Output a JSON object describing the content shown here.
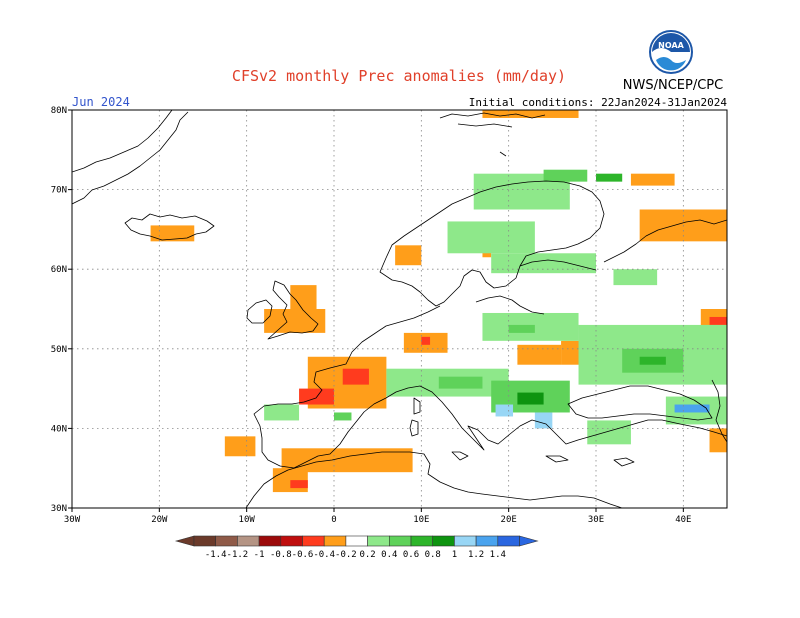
{
  "header": {
    "title": "CFSv2 monthly Prec anomalies (mm/day)",
    "month": "Jun 2024",
    "initial_conditions": "Initial conditions: 22Jan2024-31Jan2024",
    "agency": "NWS/NCEP/CPC",
    "logo_text": "NOAA"
  },
  "chart_data": {
    "type": "heatmap",
    "title": "CFSv2 monthly Prec anomalies (mm/day)",
    "subtitle": "Jun 2024",
    "xlabel": "",
    "ylabel": "",
    "xlim": [
      -30,
      45
    ],
    "ylim": [
      30,
      80
    ],
    "x_ticks": [
      -30,
      -20,
      -10,
      0,
      10,
      20,
      30,
      40
    ],
    "x_tick_labels": [
      "30W",
      "20W",
      "10W",
      "0",
      "10E",
      "20E",
      "30E",
      "40E"
    ],
    "y_ticks": [
      30,
      40,
      50,
      60,
      70,
      80
    ],
    "y_tick_labels": [
      "30N",
      "40N",
      "50N",
      "60N",
      "70N",
      "80N"
    ],
    "grid": true,
    "colorbar": {
      "levels": [
        -1.4,
        -1.2,
        -1,
        -0.8,
        -0.6,
        -0.4,
        -0.2,
        0.2,
        0.4,
        0.6,
        0.8,
        1,
        1.2,
        1.4
      ],
      "labels": [
        "-1.4",
        "-1.2",
        "-1",
        "-0.8",
        "-0.6",
        "-0.4",
        "-0.2",
        "0.2",
        "0.4",
        "0.6",
        "0.8",
        "1",
        "1.2",
        "1.4"
      ],
      "colors": [
        "#6b3a2a",
        "#8f5a48",
        "#b49484",
        "#9c0a0a",
        "#bf0e0e",
        "#ff3b1e",
        "#ff9e1a",
        "#ffffff",
        "#8ee88a",
        "#5fd25a",
        "#2db52a",
        "#0e9410",
        "#98d6f5",
        "#4aa3ee",
        "#2a66e0"
      ]
    },
    "anomaly_regions": [
      {
        "lon": [
          -12.5,
          -9
        ],
        "lat": [
          36.5,
          39
        ],
        "value": -0.3
      },
      {
        "lon": [
          -21,
          -16
        ],
        "lat": [
          63.5,
          65.5
        ],
        "value": -0.3
      },
      {
        "lon": [
          -8,
          -1
        ],
        "lat": [
          52,
          55
        ],
        "value": -0.3
      },
      {
        "lon": [
          -5,
          -2
        ],
        "lat": [
          55,
          58
        ],
        "value": -0.3
      },
      {
        "lon": [
          -3,
          6
        ],
        "lat": [
          42.5,
          49
        ],
        "value": -0.3
      },
      {
        "lon": [
          1,
          4
        ],
        "lat": [
          45.5,
          47.5
        ],
        "value": -0.5
      },
      {
        "lon": [
          -4,
          0
        ],
        "lat": [
          43,
          45
        ],
        "value": -0.5
      },
      {
        "lon": [
          -6,
          9
        ],
        "lat": [
          34.5,
          37.5
        ],
        "value": -0.3
      },
      {
        "lon": [
          -7,
          -3
        ],
        "lat": [
          32,
          35
        ],
        "value": -0.3
      },
      {
        "lon": [
          -5,
          -3
        ],
        "lat": [
          32.5,
          33.5
        ],
        "value": -0.5
      },
      {
        "lon": [
          8,
          13
        ],
        "lat": [
          49.5,
          52
        ],
        "value": -0.3
      },
      {
        "lon": [
          10,
          11
        ],
        "lat": [
          50.5,
          51.5
        ],
        "value": -0.5
      },
      {
        "lon": [
          17,
          18
        ],
        "lat": [
          61.5,
          62.5
        ],
        "value": -0.3
      },
      {
        "lon": [
          7,
          10
        ],
        "lat": [
          60.5,
          63
        ],
        "value": -0.3
      },
      {
        "lon": [
          21,
          26
        ],
        "lat": [
          48,
          50.5
        ],
        "value": -0.3
      },
      {
        "lon": [
          26,
          29
        ],
        "lat": [
          48,
          51
        ],
        "value": -0.3
      },
      {
        "lon": [
          34,
          39
        ],
        "lat": [
          70.5,
          72
        ],
        "value": -0.3
      },
      {
        "lon": [
          35,
          45
        ],
        "lat": [
          63.5,
          67.5
        ],
        "value": -0.3
      },
      {
        "lon": [
          42,
          45
        ],
        "lat": [
          52,
          55
        ],
        "value": -0.3
      },
      {
        "lon": [
          43,
          45
        ],
        "lat": [
          53,
          54
        ],
        "value": -0.5
      },
      {
        "lon": [
          43,
          45
        ],
        "lat": [
          37,
          40
        ],
        "value": -0.3
      },
      {
        "lon": [
          17,
          28
        ],
        "lat": [
          79,
          80
        ],
        "value": -0.3
      },
      {
        "lon": [
          16,
          27
        ],
        "lat": [
          67.5,
          72
        ],
        "value": 0.3
      },
      {
        "lon": [
          13,
          23
        ],
        "lat": [
          62,
          66
        ],
        "value": 0.3
      },
      {
        "lon": [
          18,
          30
        ],
        "lat": [
          59.5,
          62
        ],
        "value": 0.3
      },
      {
        "lon": [
          32,
          37
        ],
        "lat": [
          58,
          60
        ],
        "value": 0.3
      },
      {
        "lon": [
          24,
          29
        ],
        "lat": [
          71,
          72.5
        ],
        "value": 0.5
      },
      {
        "lon": [
          30,
          33
        ],
        "lat": [
          71,
          72
        ],
        "value": 0.7
      },
      {
        "lon": [
          17,
          28
        ],
        "lat": [
          51,
          54.5
        ],
        "value": 0.3
      },
      {
        "lon": [
          20,
          23
        ],
        "lat": [
          52,
          53
        ],
        "value": 0.5
      },
      {
        "lon": [
          28,
          45
        ],
        "lat": [
          45.5,
          53
        ],
        "value": 0.3
      },
      {
        "lon": [
          33,
          40
        ],
        "lat": [
          47,
          50
        ],
        "value": 0.5
      },
      {
        "lon": [
          35,
          38
        ],
        "lat": [
          48,
          49
        ],
        "value": 0.7
      },
      {
        "lon": [
          6,
          20
        ],
        "lat": [
          44,
          47.5
        ],
        "value": 0.3
      },
      {
        "lon": [
          12,
          17
        ],
        "lat": [
          45,
          46.5
        ],
        "value": 0.5
      },
      {
        "lon": [
          18,
          27
        ],
        "lat": [
          42,
          46
        ],
        "value": 0.5
      },
      {
        "lon": [
          21,
          24
        ],
        "lat": [
          43,
          44.5
        ],
        "value": 0.8
      },
      {
        "lon": [
          18.5,
          20.5
        ],
        "lat": [
          41.5,
          43
        ],
        "value": 1.1
      },
      {
        "lon": [
          23,
          25
        ],
        "lat": [
          40,
          42
        ],
        "value": 1.1
      },
      {
        "lon": [
          29,
          34
        ],
        "lat": [
          38,
          41
        ],
        "value": 0.3
      },
      {
        "lon": [
          38,
          45
        ],
        "lat": [
          40.5,
          44
        ],
        "value": 0.3
      },
      {
        "lon": [
          39,
          43
        ],
        "lat": [
          42,
          43
        ],
        "value": 1.3
      },
      {
        "lon": [
          -8,
          -4
        ],
        "lat": [
          41,
          43
        ],
        "value": 0.3
      },
      {
        "lon": [
          0,
          2
        ],
        "lat": [
          41,
          42
        ],
        "value": 0.5
      }
    ]
  }
}
